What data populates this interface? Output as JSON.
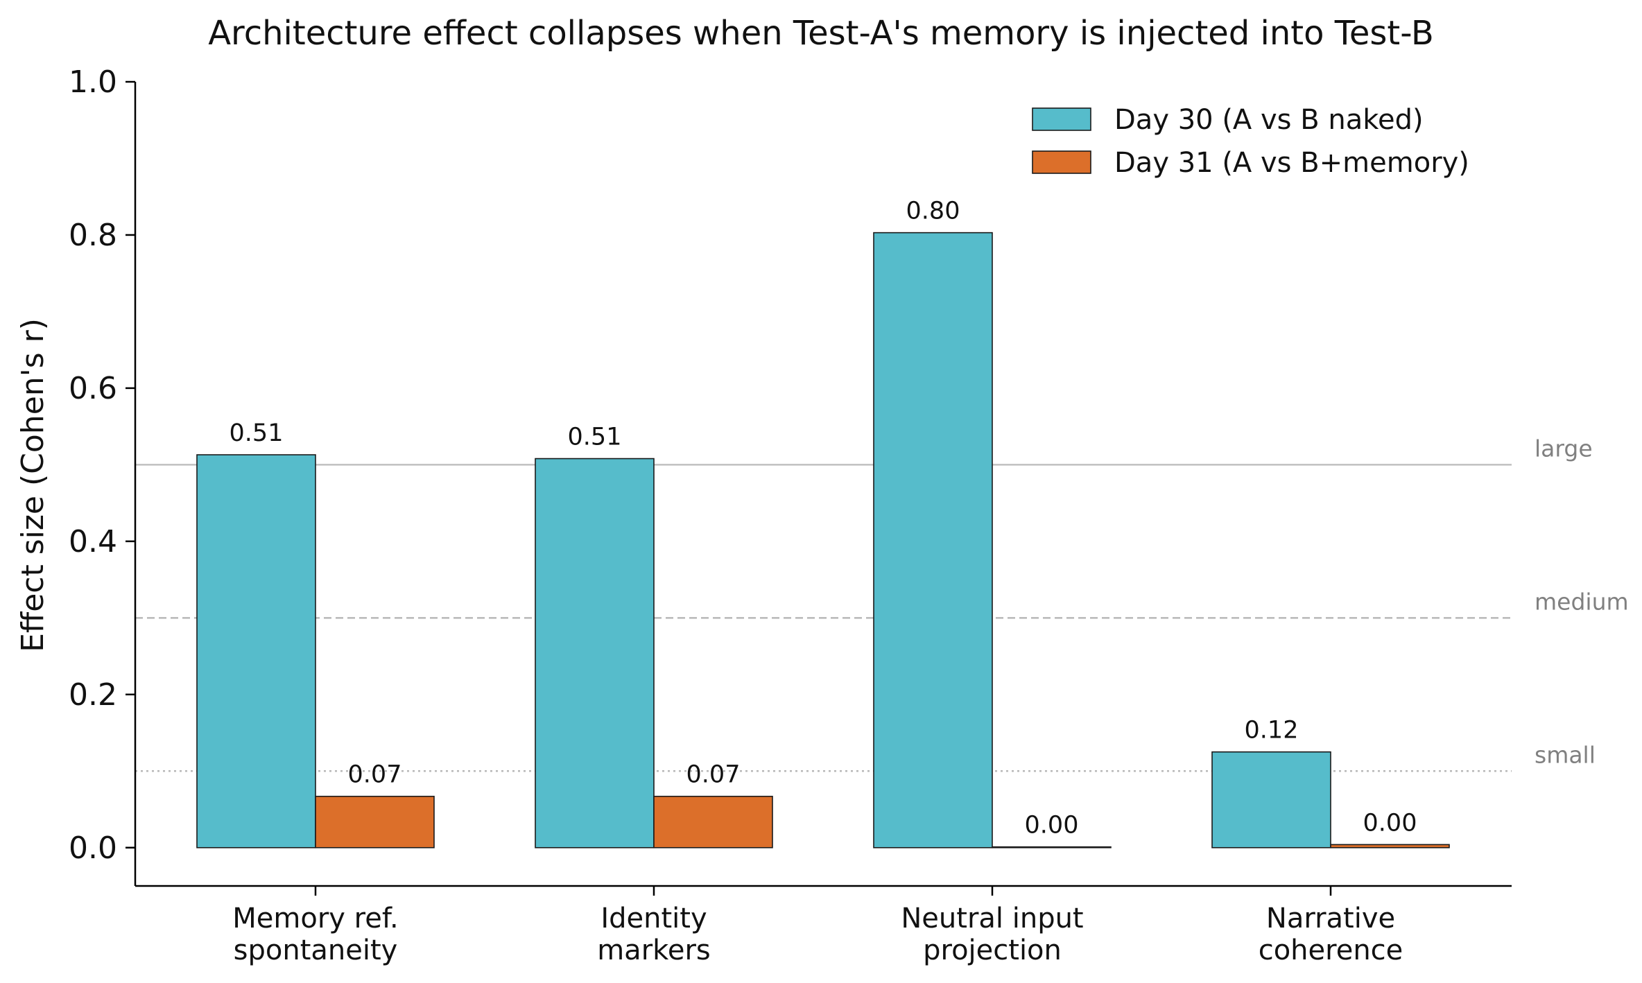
{
  "chart_data": {
    "type": "bar",
    "title": "Architecture effect collapses when Test-A's memory is injected into Test-B",
    "xlabel": "",
    "ylabel": "Effect size  (Cohen's r)",
    "ylim": [
      -0.05,
      1.0
    ],
    "yticks": [
      "0.0",
      "0.2",
      "0.4",
      "0.6",
      "0.8",
      "1.0"
    ],
    "categories": [
      [
        "Memory ref.",
        "spontaneity"
      ],
      [
        "Identity",
        "markers"
      ],
      [
        "Neutral input",
        "projection"
      ],
      [
        "Narrative",
        "coherence"
      ]
    ],
    "series": [
      {
        "name": "Day 30 (A vs B naked)",
        "color": "#56bccb",
        "values": [
          0.513,
          0.508,
          0.803,
          0.125
        ],
        "labels": [
          "0.51",
          "0.51",
          "0.80",
          "0.12"
        ]
      },
      {
        "name": "Day 31 (A vs B+memory)",
        "color": "#dc6f2a",
        "values": [
          0.067,
          0.067,
          0.001,
          0.004
        ],
        "labels": [
          "0.07",
          "0.07",
          "0.00",
          "0.00"
        ]
      }
    ],
    "thresholds": [
      {
        "label": "large",
        "value": 0.5,
        "style": "solid",
        "color": "#c0c0c0"
      },
      {
        "label": "medium",
        "value": 0.3,
        "style": "dashed",
        "color": "#b8b8b8"
      },
      {
        "label": "small",
        "value": 0.1,
        "style": "dotted",
        "color": "#b8b8b8"
      }
    ],
    "legend_position": "top-right",
    "grid": false
  }
}
